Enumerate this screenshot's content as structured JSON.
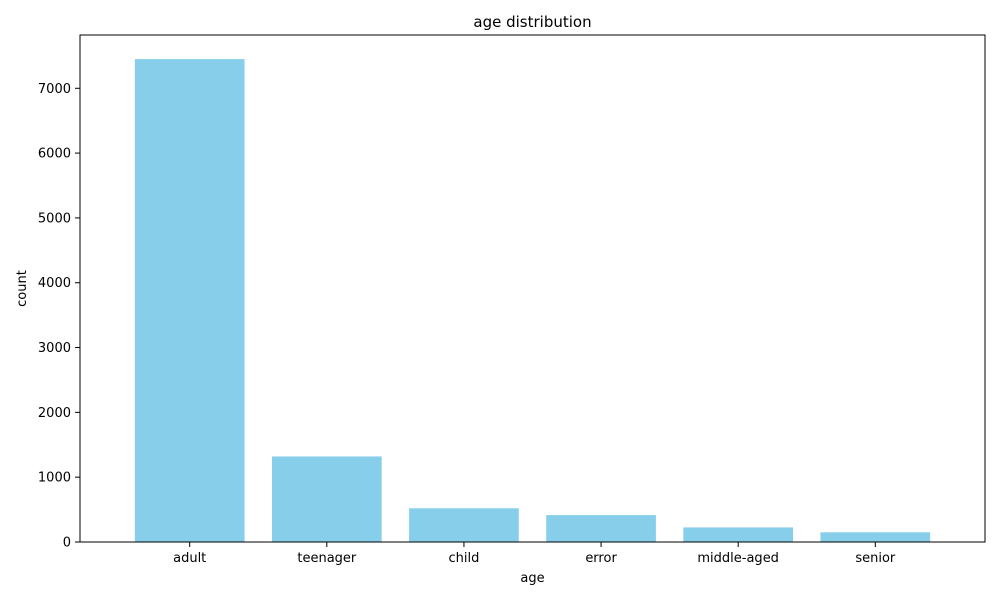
{
  "chart_data": {
    "type": "bar",
    "title": "age distribution",
    "xlabel": "age",
    "ylabel": "count",
    "categories": [
      "adult",
      "teenager",
      "child",
      "error",
      "middle-aged",
      "senior"
    ],
    "values": [
      7450,
      1320,
      520,
      415,
      225,
      150
    ],
    "ylim": [
      0,
      7822
    ],
    "yticks": [
      0,
      1000,
      2000,
      3000,
      4000,
      5000,
      6000,
      7000
    ],
    "grid": false,
    "bar_color": "#87CEEB",
    "axis_color": "#000000"
  }
}
